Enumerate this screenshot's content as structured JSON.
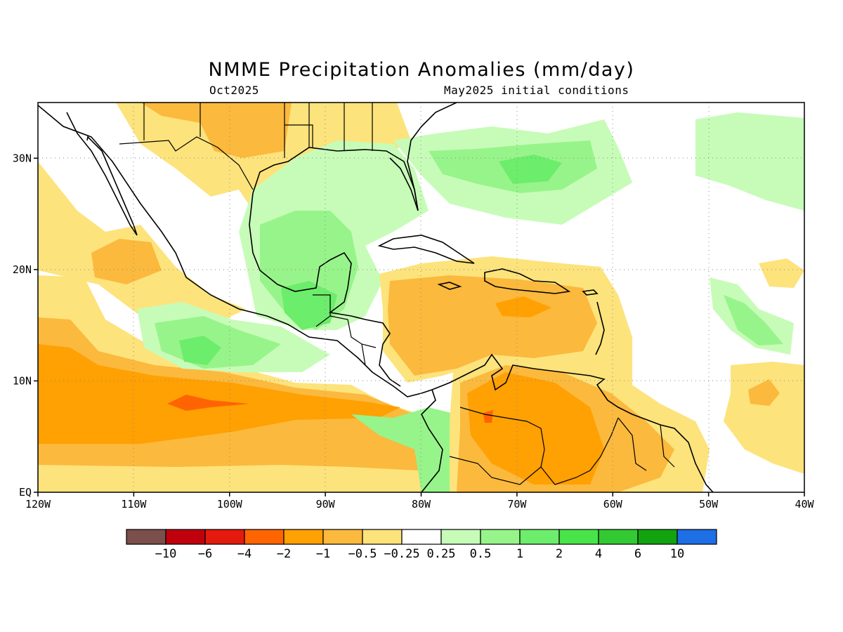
{
  "title": "NMME Precipitation Anomalies (mm/day)",
  "subtitle_left": "Oct2025",
  "subtitle_right": "May2025 initial conditions",
  "map": {
    "lon_range": [
      -120,
      -40
    ],
    "lat_range": [
      0,
      35
    ],
    "x_ticks": [
      {
        "lon": -120,
        "label": "120W"
      },
      {
        "lon": -110,
        "label": "110W"
      },
      {
        "lon": -100,
        "label": "100W"
      },
      {
        "lon": -90,
        "label": "90W"
      },
      {
        "lon": -80,
        "label": "80W"
      },
      {
        "lon": -70,
        "label": "70W"
      },
      {
        "lon": -60,
        "label": "60W"
      },
      {
        "lon": -50,
        "label": "50W"
      },
      {
        "lon": -40,
        "label": "40W"
      }
    ],
    "y_ticks": [
      {
        "lat": 0,
        "label": "EQ"
      },
      {
        "lat": 10,
        "label": "10N"
      },
      {
        "lat": 20,
        "label": "20N"
      },
      {
        "lat": 30,
        "label": "30N"
      }
    ],
    "grid": true
  },
  "colorbar": {
    "colors": [
      "#7b4f4b",
      "#c0000c",
      "#e41a0f",
      "#ff6402",
      "#ffa003",
      "#fbb93d",
      "#fde37c",
      "#ffffff",
      "#c7fcb8",
      "#97f48a",
      "#6ced6b",
      "#49e44a",
      "#33c933",
      "#12a311",
      "#1e6ee6"
    ],
    "labels": [
      "−10",
      "−6",
      "−4",
      "−2",
      "−1",
      "−0.5",
      "−0.25",
      "0.25",
      "0.5",
      "1",
      "2",
      "4",
      "6",
      "10"
    ]
  },
  "regions": [
    {
      "name": "eastern-pacific-itcz-deficit",
      "level": "-1",
      "color": "#ffa003"
    },
    {
      "name": "eastern-pacific-core-deficit",
      "level": "-2",
      "color": "#ff6402"
    },
    {
      "name": "caribbean-deficit",
      "level": "-0.5",
      "color": "#fbb93d"
    },
    {
      "name": "venezuela-deficit",
      "level": "-1",
      "color": "#ffa003"
    },
    {
      "name": "gulf-of-mexico-surplus",
      "level": "0.5",
      "color": "#97f48a"
    },
    {
      "name": "central-america-surplus",
      "level": "1",
      "color": "#6ced6b"
    },
    {
      "name": "pacific-off-mexico-surplus",
      "level": "1",
      "color": "#6ced6b"
    },
    {
      "name": "western-atlantic-surplus",
      "level": "0.5",
      "color": "#97f48a"
    },
    {
      "name": "central-atlantic-surplus",
      "level": "0.5",
      "color": "#97f48a"
    },
    {
      "name": "northern-mexico-deficit",
      "level": "-0.25",
      "color": "#fde37c"
    }
  ]
}
